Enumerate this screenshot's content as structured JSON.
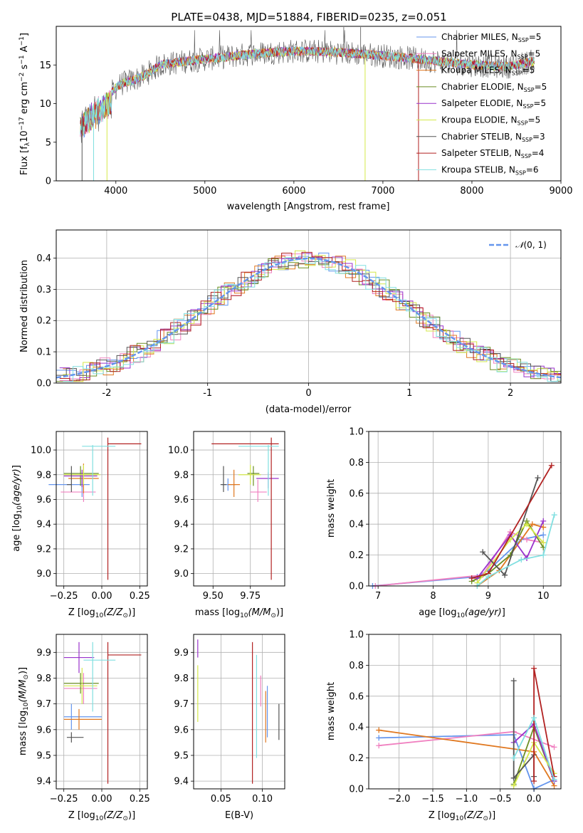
{
  "figure_title": "PLATE=0438, MJD=51884, FIBERID=0235, z=0.051",
  "series_legend": [
    {
      "name": "Chabrier MILES, N",
      "sub": "SSP",
      "tail": "=5",
      "color": "#6495ed"
    },
    {
      "name": "Salpeter MILES, N",
      "sub": "SSP",
      "tail": "=5",
      "color": "#f080c0"
    },
    {
      "name": "Kroupa MILES, N",
      "sub": "SSP",
      "tail": "=5",
      "color": "#e07820"
    },
    {
      "name": "Chabrier ELODIE, N",
      "sub": "SSP",
      "tail": "=5",
      "color": "#6b8e23"
    },
    {
      "name": "Salpeter ELODIE, N",
      "sub": "SSP",
      "tail": "=5",
      "color": "#9932cc"
    },
    {
      "name": "Kroupa ELODIE, N",
      "sub": "SSP",
      "tail": "=5",
      "color": "#d4e84a"
    },
    {
      "name": "Chabrier STELIB, N",
      "sub": "SSP",
      "tail": "=3",
      "color": "#555555"
    },
    {
      "name": "Salpeter STELIB, N",
      "sub": "SSP",
      "tail": "=4",
      "color": "#b22222"
    },
    {
      "name": "Kroupa STELIB, N",
      "sub": "SSP",
      "tail": "=6",
      "color": "#80dfe0"
    }
  ],
  "chart_data": [
    {
      "id": "spectrum",
      "type": "line",
      "xlabel": "wavelength [Angstrom, rest frame]",
      "ylabel_parts": {
        "pre": "Flux [f",
        "sub": "λ",
        "mid": "10",
        "sup": "−17",
        "post1": " erg cm",
        "sup2": "−2",
        "post2": " s",
        "sup3": "−1",
        "post3": " A",
        "sup4": "−1",
        "end": "]"
      },
      "xlim": [
        3330,
        9000
      ],
      "ylim": [
        0,
        20
      ],
      "xticks": [
        4000,
        5000,
        6000,
        7000,
        8000,
        9000
      ],
      "yticks": [
        0,
        5,
        10,
        15
      ],
      "data_range": [
        3600,
        8700
      ],
      "continuum": [
        [
          3600,
          8.5
        ],
        [
          3700,
          9.5
        ],
        [
          3800,
          10.5
        ],
        [
          3950,
          11.5
        ],
        [
          4050,
          12.5
        ],
        [
          4300,
          13.5
        ],
        [
          4500,
          15.0
        ],
        [
          4800,
          15.5
        ],
        [
          5200,
          16.0
        ],
        [
          5600,
          16.5
        ],
        [
          6000,
          16.8
        ],
        [
          6400,
          16.7
        ],
        [
          6800,
          16.4
        ],
        [
          7200,
          16.0
        ],
        [
          7600,
          15.5
        ],
        [
          8000,
          15.0
        ],
        [
          8400,
          14.8
        ],
        [
          8700,
          15.5
        ]
      ],
      "spike_down": [
        3620,
        3750,
        3900,
        6800,
        7400
      ],
      "spike_up": [
        6560,
        6750
      ]
    },
    {
      "id": "residuals",
      "type": "histogram",
      "xlabel": "(data-model)/error",
      "ylabel": "Normed distribution",
      "xlim": [
        -2.5,
        2.5
      ],
      "ylim": [
        0,
        0.49
      ],
      "xticks": [
        -2,
        -1,
        0,
        1,
        2
      ],
      "yticks": [
        0,
        0.1,
        0.2,
        0.3,
        0.4
      ],
      "bin_width": 0.1,
      "reference_curve": {
        "label_pre": "𝒩",
        "label_post": "(0, 1)",
        "mean": 0,
        "sigma": 1,
        "color": "#6495ed"
      }
    },
    {
      "id": "age_vs_Z",
      "type": "scatter",
      "xlabel_parts": {
        "pre": "Z [log",
        "sub": "10",
        "mid": "(Z/Z",
        "sub2": "⊙",
        "end": ")]"
      },
      "ylabel_parts": {
        "pre": "age  [log",
        "sub": "10",
        "mid": "(age/yr)",
        "end": "]"
      },
      "xlim": [
        -0.3,
        0.3
      ],
      "ylim": [
        8.9,
        10.15
      ],
      "xticks": [
        -0.25,
        0.0,
        0.25
      ],
      "xtick_labels": [
        "−0.25",
        "0.00",
        "0.25"
      ],
      "yticks": [
        9.0,
        9.2,
        9.4,
        9.6,
        9.8,
        10.0
      ],
      "ytick_labels": [
        "9.0",
        "9.2",
        "9.4",
        "9.6",
        "9.8",
        "10.0"
      ],
      "points": [
        {
          "x": -0.13,
          "xerr": [
            0.22,
            0.05
          ],
          "y": 9.72,
          "yerr": [
            0.1,
            0.06
          ],
          "c": "#6495ed"
        },
        {
          "x": -0.12,
          "xerr": [
            0.15,
            0.08
          ],
          "y": 9.66,
          "yerr": [
            0.08,
            0.1
          ],
          "c": "#f080c0"
        },
        {
          "x": -0.12,
          "xerr": [
            0.1,
            0.1
          ],
          "y": 9.77,
          "yerr": [
            0.12,
            0.12
          ],
          "c": "#e07820"
        },
        {
          "x": -0.14,
          "xerr": [
            0.11,
            0.12
          ],
          "y": 9.81,
          "yerr": [
            0.1,
            0.06
          ],
          "c": "#6b8e23"
        },
        {
          "x": -0.13,
          "xerr": [
            0.12,
            0.1
          ],
          "y": 9.79,
          "yerr": [
            0.09,
            0.05
          ],
          "c": "#9932cc"
        },
        {
          "x": -0.12,
          "xerr": [
            0.13,
            0.11
          ],
          "y": 9.8,
          "yerr": [
            0.08,
            0.08
          ],
          "c": "#d4e84a"
        },
        {
          "x": -0.2,
          "xerr": [
            0.03,
            0.0
          ],
          "y": 9.72,
          "yerr": [
            0.06,
            0.15
          ],
          "c": "#555555"
        },
        {
          "x": 0.04,
          "xerr": [
            0.0,
            0.22
          ],
          "y": 10.05,
          "yerr": [
            1.1,
            0.05
          ],
          "c": "#b22222"
        },
        {
          "x": -0.06,
          "xerr": [
            0.07,
            0.15
          ],
          "y": 10.03,
          "yerr": [
            0.4,
            0.01
          ],
          "c": "#80dfe0"
        }
      ]
    },
    {
      "id": "age_vs_mass",
      "type": "scatter",
      "xlabel_parts": {
        "pre": "mass [log",
        "sub": "10",
        "mid": "(M/M",
        "sub2": "⊙",
        "end": ")]"
      },
      "ylabel_parts": null,
      "xlim": [
        9.37,
        9.98
      ],
      "ylim": [
        8.9,
        10.15
      ],
      "xticks": [
        9.5,
        9.75
      ],
      "xtick_labels": [
        "9.50",
        "9.75"
      ],
      "yticks": [
        9.0,
        9.2,
        9.4,
        9.6,
        9.8,
        10.0
      ],
      "ytick_labels": [
        "9.0",
        "9.2",
        "9.4",
        "9.6",
        "9.8",
        "10.0"
      ],
      "points": [
        {
          "x": 9.6,
          "xerr": [
            0.04,
            0.05
          ],
          "y": 9.72,
          "yerr": [
            0.05,
            0.05
          ],
          "c": "#6495ed"
        },
        {
          "x": 9.8,
          "xerr": [
            0.05,
            0.06
          ],
          "y": 9.66,
          "yerr": [
            0.08,
            0.1
          ],
          "c": "#f080c0"
        },
        {
          "x": 9.64,
          "xerr": [
            0.04,
            0.04
          ],
          "y": 9.72,
          "yerr": [
            0.1,
            0.12
          ],
          "c": "#e07820"
        },
        {
          "x": 9.77,
          "xerr": [
            0.04,
            0.04
          ],
          "y": 9.81,
          "yerr": [
            0.1,
            0.06
          ],
          "c": "#6b8e23"
        },
        {
          "x": 9.87,
          "xerr": [
            0.08,
            0.07
          ],
          "y": 9.77,
          "yerr": [
            0.08,
            0.05
          ],
          "c": "#9932cc"
        },
        {
          "x": 9.75,
          "xerr": [
            0.08,
            0.07
          ],
          "y": 9.8,
          "yerr": [
            0.08,
            0.08
          ],
          "c": "#d4e84a"
        },
        {
          "x": 9.57,
          "xerr": [
            0.02,
            0.02
          ],
          "y": 9.72,
          "yerr": [
            0.06,
            0.15
          ],
          "c": "#555555"
        },
        {
          "x": 9.89,
          "xerr": [
            0.4,
            0.05
          ],
          "y": 10.05,
          "yerr": [
            1.1,
            0.05
          ],
          "c": "#b22222"
        },
        {
          "x": 9.87,
          "xerr": [
            0.2,
            0.07
          ],
          "y": 10.03,
          "yerr": [
            0.4,
            0.01
          ],
          "c": "#80dfe0"
        }
      ]
    },
    {
      "id": "weight_vs_age",
      "type": "line",
      "xlabel_parts": {
        "pre": "age  [log",
        "sub": "10",
        "mid": "(age/yr)",
        "end": "]"
      },
      "ylabel": "mass weight",
      "xlim": [
        6.83,
        10.32
      ],
      "ylim": [
        0,
        1.0
      ],
      "xticks": [
        7,
        8,
        9,
        10
      ],
      "xtick_labels": [
        "7",
        "8",
        "9",
        "10"
      ],
      "yticks": [
        0,
        0.2,
        0.4,
        0.6,
        0.8,
        1.0
      ],
      "ytick_labels": [
        "0.0",
        "0.2",
        "0.4",
        "0.6",
        "0.8",
        "1.0"
      ],
      "series": [
        {
          "c": "#6495ed",
          "x": [
            6.9,
            8.8,
            9.0,
            9.6,
            10.0
          ],
          "y": [
            0.0,
            0.06,
            0.1,
            0.3,
            0.33
          ]
        },
        {
          "c": "#f080c0",
          "x": [
            6.95,
            8.9,
            9.4,
            9.7,
            10.0
          ],
          "y": [
            0.0,
            0.07,
            0.35,
            0.3,
            0.28
          ]
        },
        {
          "c": "#e07820",
          "x": [
            8.8,
            9.2,
            9.8,
            10.0
          ],
          "y": [
            0.0,
            0.1,
            0.4,
            0.38
          ]
        },
        {
          "c": "#6b8e23",
          "x": [
            8.7,
            9.0,
            9.4,
            9.7,
            10.0
          ],
          "y": [
            0.03,
            0.08,
            0.2,
            0.42,
            0.25
          ]
        },
        {
          "c": "#9932cc",
          "x": [
            8.8,
            9.4,
            9.7,
            10.0
          ],
          "y": [
            0.05,
            0.33,
            0.18,
            0.42
          ]
        },
        {
          "c": "#d4e84a",
          "x": [
            8.8,
            9.4,
            9.7,
            10.0
          ],
          "y": [
            0.02,
            0.3,
            0.4,
            0.28
          ]
        },
        {
          "c": "#555555",
          "x": [
            8.9,
            9.3,
            9.9
          ],
          "y": [
            0.22,
            0.07,
            0.7
          ]
        },
        {
          "c": "#b22222",
          "x": [
            8.7,
            9.0,
            10.15
          ],
          "y": [
            0.05,
            0.08,
            0.78
          ]
        },
        {
          "c": "#80dfe0",
          "x": [
            8.8,
            9.0,
            9.6,
            10.0,
            10.2
          ],
          "y": [
            0.0,
            0.06,
            0.17,
            0.2,
            0.46
          ]
        }
      ]
    },
    {
      "id": "mass_vs_Z",
      "type": "scatter",
      "xlabel_parts": {
        "pre": "Z [log",
        "sub": "10",
        "mid": "(Z/Z",
        "sub2": "⊙",
        "end": ")]"
      },
      "ylabel_parts": {
        "pre": "mass [log",
        "sub": "10",
        "mid": "(M/M",
        "sub2": "⊙",
        "end": ")]"
      },
      "xlim": [
        -0.3,
        0.3
      ],
      "ylim": [
        9.37,
        9.97
      ],
      "xticks": [
        -0.25,
        0.0,
        0.25
      ],
      "xtick_labels": [
        "−0.25",
        "0.00",
        "0.25"
      ],
      "yticks": [
        9.4,
        9.5,
        9.6,
        9.7,
        9.8,
        9.9
      ],
      "ytick_labels": [
        "9.4",
        "9.5",
        "9.6",
        "9.7",
        "9.8",
        "9.9"
      ],
      "points": [
        {
          "x": -0.2,
          "xerr": [
            0.05,
            0.2
          ],
          "y": 9.65,
          "yerr": [
            0.05,
            0.05
          ],
          "c": "#6495ed"
        },
        {
          "x": -0.12,
          "xerr": [
            0.13,
            0.09
          ],
          "y": 9.76,
          "yerr": [
            0.06,
            0.06
          ],
          "c": "#f080c0"
        },
        {
          "x": -0.15,
          "xerr": [
            0.1,
            0.15
          ],
          "y": 9.64,
          "yerr": [
            0.04,
            0.04
          ],
          "c": "#e07820"
        },
        {
          "x": -0.14,
          "xerr": [
            0.11,
            0.12
          ],
          "y": 9.78,
          "yerr": [
            0.04,
            0.04
          ],
          "c": "#6b8e23"
        },
        {
          "x": -0.15,
          "xerr": [
            0.1,
            0.1
          ],
          "y": 9.88,
          "yerr": [
            0.06,
            0.06
          ],
          "c": "#9932cc"
        },
        {
          "x": -0.13,
          "xerr": [
            0.12,
            0.1
          ],
          "y": 9.77,
          "yerr": [
            0.07,
            0.07
          ],
          "c": "#d4e84a"
        },
        {
          "x": -0.2,
          "xerr": [
            0.03,
            0.08
          ],
          "y": 9.57,
          "yerr": [
            0.02,
            0.02
          ],
          "c": "#555555"
        },
        {
          "x": 0.04,
          "xerr": [
            0.0,
            0.22
          ],
          "y": 9.89,
          "yerr": [
            0.5,
            0.05
          ],
          "c": "#b22222"
        },
        {
          "x": -0.06,
          "xerr": [
            0.06,
            0.15
          ],
          "y": 9.87,
          "yerr": [
            0.2,
            0.07
          ],
          "c": "#80dfe0"
        }
      ]
    },
    {
      "id": "mass_vs_ebv",
      "type": "scatter",
      "xlabel": "E(B-V)",
      "xlim": [
        0.017,
        0.127
      ],
      "ylim": [
        9.37,
        9.97
      ],
      "xticks": [
        0.05,
        0.1
      ],
      "xtick_labels": [
        "0.05",
        "0.10"
      ],
      "yticks": [
        9.4,
        9.5,
        9.6,
        9.7,
        9.8,
        9.9
      ],
      "ytick_labels": [
        "9.4",
        "9.5",
        "9.6",
        "9.7",
        "9.8",
        "9.9"
      ],
      "points": [
        {
          "x": 0.022,
          "y": 9.93,
          "yerr": [
            0.05,
            0.02
          ],
          "c": "#9932cc"
        },
        {
          "x": 0.022,
          "y": 9.75,
          "yerr": [
            0.12,
            0.1
          ],
          "c": "#d4e84a"
        },
        {
          "x": 0.088,
          "y": 9.89,
          "yerr": [
            0.5,
            0.05
          ],
          "c": "#b22222"
        },
        {
          "x": 0.093,
          "y": 9.69,
          "yerr": [
            0.2,
            0.2
          ],
          "c": "#80dfe0"
        },
        {
          "x": 0.098,
          "y": 9.75,
          "yerr": [
            0.06,
            0.06
          ],
          "c": "#f080c0"
        },
        {
          "x": 0.104,
          "y": 9.65,
          "yerr": [
            0.1,
            0.1
          ],
          "c": "#e07820"
        },
        {
          "x": 0.106,
          "y": 9.67,
          "yerr": [
            0.1,
            0.1
          ],
          "c": "#6495ed"
        },
        {
          "x": 0.12,
          "y": 9.63,
          "yerr": [
            0.07,
            0.07
          ],
          "c": "#555555"
        }
      ]
    },
    {
      "id": "weight_vs_Z",
      "type": "line",
      "xlabel_parts": {
        "pre": "Z [log",
        "sub": "10",
        "mid": "(Z/Z",
        "sub2": "⊙",
        "end": ")]"
      },
      "ylabel": "mass weight",
      "xlim": [
        -2.45,
        0.4
      ],
      "ylim": [
        0,
        1.0
      ],
      "xticks": [
        -2.0,
        -1.5,
        -1.0,
        -0.5,
        0.0
      ],
      "xtick_labels": [
        "−2.0",
        "−1.5",
        "−1.0",
        "−0.5",
        "0.0"
      ],
      "yticks": [
        0,
        0.2,
        0.4,
        0.6,
        0.8,
        1.0
      ],
      "ytick_labels": [
        "0.0",
        "0.2",
        "0.4",
        "0.6",
        "0.8",
        "1.0"
      ],
      "series": [
        {
          "c": "#6495ed",
          "x": [
            -2.3,
            -0.3,
            0.0,
            0.3
          ],
          "y": [
            0.33,
            0.35,
            0.0,
            0.06
          ]
        },
        {
          "c": "#f080c0",
          "x": [
            -2.3,
            -0.3,
            0.3
          ],
          "y": [
            0.28,
            0.37,
            0.27
          ]
        },
        {
          "c": "#e07820",
          "x": [
            -2.3,
            0.0,
            0.3
          ],
          "y": [
            0.38,
            0.24,
            0.02
          ]
        },
        {
          "c": "#6b8e23",
          "x": [
            -0.3,
            0.0,
            0.3
          ],
          "y": [
            0.03,
            0.4,
            0.05
          ]
        },
        {
          "c": "#9932cc",
          "x": [
            -0.3,
            0.0,
            0.3
          ],
          "y": [
            0.3,
            0.42,
            0.05
          ]
        },
        {
          "c": "#d4e84a",
          "x": [
            -0.3,
            0.0,
            0.3
          ],
          "y": [
            0.02,
            0.3,
            0.1
          ]
        },
        {
          "c": "#555555",
          "x": [
            -0.3,
            -0.3,
            0.0,
            0.0
          ],
          "y": [
            0.7,
            0.07,
            0.22,
            0.08
          ]
        },
        {
          "c": "#b22222",
          "x": [
            -0.0,
            0.0,
            0.3
          ],
          "y": [
            0.05,
            0.78,
            0.08
          ]
        },
        {
          "c": "#80dfe0",
          "x": [
            -0.3,
            0.0,
            0.3
          ],
          "y": [
            0.2,
            0.46,
            0.06
          ]
        }
      ]
    }
  ]
}
